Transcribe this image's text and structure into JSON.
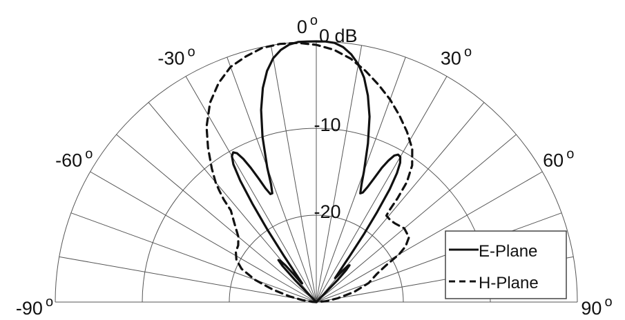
{
  "chart_data": {
    "type": "polar-line",
    "title": "",
    "theta_range": [
      -90,
      90
    ],
    "r_range": [
      -30,
      0
    ],
    "angle_labels": [
      {
        "angle": -90,
        "text": "-90",
        "deg": "o"
      },
      {
        "angle": -60,
        "text": "-60",
        "deg": "o"
      },
      {
        "angle": -30,
        "text": "-30",
        "deg": "o"
      },
      {
        "angle": 0,
        "text": "0",
        "deg": "o"
      },
      {
        "angle": 30,
        "text": "30",
        "deg": "o"
      },
      {
        "angle": 60,
        "text": "60",
        "deg": "o"
      },
      {
        "angle": 90,
        "text": "90",
        "deg": "o"
      }
    ],
    "radial_labels": [
      {
        "value": 0,
        "text": "0 dB"
      },
      {
        "value": -10,
        "text": "-10"
      },
      {
        "value": -20,
        "text": "-20"
      }
    ],
    "series": [
      {
        "name": "E-Plane",
        "style": "solid",
        "color": "#111111",
        "points": [
          [
            -45,
            -30
          ],
          [
            -44,
            -26.5
          ],
          [
            -43,
            -24.3
          ],
          [
            -42,
            -23.5
          ],
          [
            -41,
            -23.7
          ],
          [
            -40,
            -24.5
          ],
          [
            -39,
            -26
          ],
          [
            -38,
            -27.2
          ],
          [
            -37,
            -27.3
          ],
          [
            -36,
            -26
          ],
          [
            -35,
            -23.5
          ],
          [
            -34,
            -20
          ],
          [
            -33,
            -16.5
          ],
          [
            -32,
            -13.5
          ],
          [
            -31,
            -11.5
          ],
          [
            -30,
            -10.6
          ],
          [
            -29,
            -10.3
          ],
          [
            -28,
            -10.6
          ],
          [
            -27,
            -11.5
          ],
          [
            -26,
            -12.8
          ],
          [
            -25,
            -14.3
          ],
          [
            -24,
            -15.7
          ],
          [
            -23,
            -16.5
          ],
          [
            -22,
            -16.5
          ],
          [
            -21,
            -15.5
          ],
          [
            -20,
            -13.5
          ],
          [
            -18,
            -10
          ],
          [
            -16,
            -7
          ],
          [
            -14,
            -4.6
          ],
          [
            -12,
            -2.8
          ],
          [
            -10,
            -1.5
          ],
          [
            -8,
            -0.7
          ],
          [
            -6,
            -0.2
          ],
          [
            -4,
            0
          ],
          [
            -2,
            0
          ],
          [
            0,
            0
          ],
          [
            2,
            0
          ],
          [
            4,
            -0.1
          ],
          [
            6,
            -0.5
          ],
          [
            8,
            -1.2
          ],
          [
            10,
            -2.2
          ],
          [
            12,
            -3.6
          ],
          [
            14,
            -5.5
          ],
          [
            16,
            -7.8
          ],
          [
            18,
            -10.8
          ],
          [
            20,
            -14
          ],
          [
            21,
            -15.5
          ],
          [
            22,
            -16.5
          ],
          [
            23,
            -16.3
          ],
          [
            24,
            -15.5
          ],
          [
            25,
            -14.3
          ],
          [
            26,
            -12.8
          ],
          [
            27,
            -11.7
          ],
          [
            28,
            -10.9
          ],
          [
            29,
            -10.6
          ],
          [
            30,
            -10.7
          ],
          [
            31,
            -11.3
          ],
          [
            32,
            -12.5
          ],
          [
            33,
            -14.5
          ],
          [
            34,
            -17.5
          ],
          [
            35,
            -20.5
          ],
          [
            36,
            -23.5
          ],
          [
            37,
            -25.5
          ],
          [
            38,
            -26.5
          ],
          [
            39,
            -26.2
          ],
          [
            40,
            -25.3
          ],
          [
            41,
            -24.5
          ],
          [
            42,
            -24.3
          ],
          [
            43,
            -25
          ],
          [
            44,
            -26.5
          ],
          [
            45,
            -30
          ]
        ]
      },
      {
        "name": "H-Plane",
        "style": "dashed",
        "color": "#111111",
        "points": [
          [
            -90,
            -30
          ],
          [
            -86,
            -29.5
          ],
          [
            -82,
            -28.4
          ],
          [
            -78,
            -26.9
          ],
          [
            -74,
            -24.8
          ],
          [
            -70,
            -22.5
          ],
          [
            -66,
            -20.6
          ],
          [
            -62,
            -19.6
          ],
          [
            -58,
            -19.1
          ],
          [
            -54,
            -18.9
          ],
          [
            -50,
            -18.3
          ],
          [
            -46,
            -16.9
          ],
          [
            -43,
            -15.6
          ],
          [
            -42,
            -14.1
          ],
          [
            -41,
            -13
          ],
          [
            -40,
            -12
          ],
          [
            -38,
            -10.5
          ],
          [
            -35,
            -8.3
          ],
          [
            -32,
            -6.2
          ],
          [
            -28,
            -4
          ],
          [
            -24,
            -2.4
          ],
          [
            -20,
            -1.2
          ],
          [
            -16,
            -0.6
          ],
          [
            -12,
            -0.1
          ],
          [
            -8,
            0
          ],
          [
            -4,
            -0.1
          ],
          [
            0,
            -0.4
          ],
          [
            4,
            -0.9
          ],
          [
            8,
            -1.7
          ],
          [
            12,
            -2.8
          ],
          [
            16,
            -4
          ],
          [
            20,
            -5.2
          ],
          [
            24,
            -6.5
          ],
          [
            28,
            -7.8
          ],
          [
            32,
            -9.2
          ],
          [
            35,
            -10.8
          ],
          [
            37,
            -12.7
          ],
          [
            38,
            -14.8
          ],
          [
            38.5,
            -16.5
          ],
          [
            39,
            -17.2
          ],
          [
            42,
            -17.3
          ],
          [
            45,
            -17.2
          ],
          [
            50,
            -16.8
          ],
          [
            55,
            -17
          ],
          [
            58,
            -17.9
          ],
          [
            60,
            -19
          ],
          [
            62,
            -20.8
          ],
          [
            65,
            -22.3
          ],
          [
            70,
            -23.6
          ],
          [
            75,
            -25.5
          ],
          [
            80,
            -27.5
          ],
          [
            85,
            -28.9
          ],
          [
            90,
            -30
          ]
        ]
      }
    ],
    "legend": {
      "position": "bottom-right",
      "entries": [
        {
          "name": "E-Plane",
          "style": "solid"
        },
        {
          "name": "H-Plane",
          "style": "dashed"
        }
      ]
    }
  }
}
